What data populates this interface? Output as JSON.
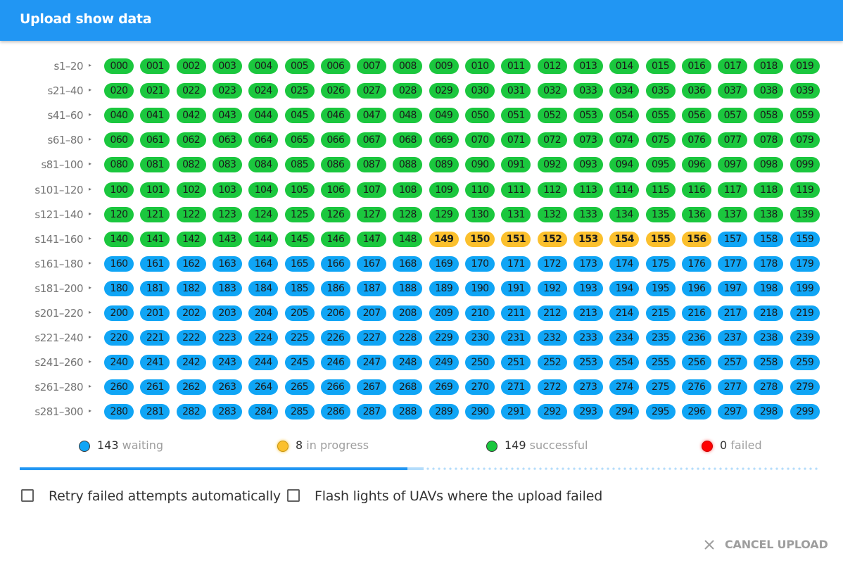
{
  "dialog": {
    "title": "Upload show data"
  },
  "rows": [
    {
      "label": "s1–20",
      "chips": [
        [
          "000",
          "s"
        ],
        [
          "001",
          "s"
        ],
        [
          "002",
          "s"
        ],
        [
          "003",
          "s"
        ],
        [
          "004",
          "s"
        ],
        [
          "005",
          "s"
        ],
        [
          "006",
          "s"
        ],
        [
          "007",
          "s"
        ],
        [
          "008",
          "s"
        ],
        [
          "009",
          "s"
        ],
        [
          "010",
          "s"
        ],
        [
          "011",
          "s"
        ],
        [
          "012",
          "s"
        ],
        [
          "013",
          "s"
        ],
        [
          "014",
          "s"
        ],
        [
          "015",
          "s"
        ],
        [
          "016",
          "s"
        ],
        [
          "017",
          "s"
        ],
        [
          "018",
          "s"
        ],
        [
          "019",
          "s"
        ]
      ]
    },
    {
      "label": "s21–40",
      "chips": [
        [
          "020",
          "s"
        ],
        [
          "021",
          "s"
        ],
        [
          "022",
          "s"
        ],
        [
          "023",
          "s"
        ],
        [
          "024",
          "s"
        ],
        [
          "025",
          "s"
        ],
        [
          "026",
          "s"
        ],
        [
          "027",
          "s"
        ],
        [
          "028",
          "s"
        ],
        [
          "029",
          "s"
        ],
        [
          "030",
          "s"
        ],
        [
          "031",
          "s"
        ],
        [
          "032",
          "s"
        ],
        [
          "033",
          "s"
        ],
        [
          "034",
          "s"
        ],
        [
          "035",
          "s"
        ],
        [
          "036",
          "s"
        ],
        [
          "037",
          "s"
        ],
        [
          "038",
          "s"
        ],
        [
          "039",
          "s"
        ]
      ]
    },
    {
      "label": "s41–60",
      "chips": [
        [
          "040",
          "s"
        ],
        [
          "041",
          "s"
        ],
        [
          "042",
          "s"
        ],
        [
          "043",
          "s"
        ],
        [
          "044",
          "s"
        ],
        [
          "045",
          "s"
        ],
        [
          "046",
          "s"
        ],
        [
          "047",
          "s"
        ],
        [
          "048",
          "s"
        ],
        [
          "049",
          "s"
        ],
        [
          "050",
          "s"
        ],
        [
          "051",
          "s"
        ],
        [
          "052",
          "s"
        ],
        [
          "053",
          "s"
        ],
        [
          "054",
          "s"
        ],
        [
          "055",
          "s"
        ],
        [
          "056",
          "s"
        ],
        [
          "057",
          "s"
        ],
        [
          "058",
          "s"
        ],
        [
          "059",
          "s"
        ]
      ]
    },
    {
      "label": "s61–80",
      "chips": [
        [
          "060",
          "s"
        ],
        [
          "061",
          "s"
        ],
        [
          "062",
          "s"
        ],
        [
          "063",
          "s"
        ],
        [
          "064",
          "s"
        ],
        [
          "065",
          "s"
        ],
        [
          "066",
          "s"
        ],
        [
          "067",
          "s"
        ],
        [
          "068",
          "s"
        ],
        [
          "069",
          "s"
        ],
        [
          "070",
          "s"
        ],
        [
          "071",
          "s"
        ],
        [
          "072",
          "s"
        ],
        [
          "073",
          "s"
        ],
        [
          "074",
          "s"
        ],
        [
          "075",
          "s"
        ],
        [
          "076",
          "s"
        ],
        [
          "077",
          "s"
        ],
        [
          "078",
          "s"
        ],
        [
          "079",
          "s"
        ]
      ]
    },
    {
      "label": "s81–100",
      "chips": [
        [
          "080",
          "s"
        ],
        [
          "081",
          "s"
        ],
        [
          "082",
          "s"
        ],
        [
          "083",
          "s"
        ],
        [
          "084",
          "s"
        ],
        [
          "085",
          "s"
        ],
        [
          "086",
          "s"
        ],
        [
          "087",
          "s"
        ],
        [
          "088",
          "s"
        ],
        [
          "089",
          "s"
        ],
        [
          "090",
          "s"
        ],
        [
          "091",
          "s"
        ],
        [
          "092",
          "s"
        ],
        [
          "093",
          "s"
        ],
        [
          "094",
          "s"
        ],
        [
          "095",
          "s"
        ],
        [
          "096",
          "s"
        ],
        [
          "097",
          "s"
        ],
        [
          "098",
          "s"
        ],
        [
          "099",
          "s"
        ]
      ]
    },
    {
      "label": "s101–120",
      "chips": [
        [
          "100",
          "s"
        ],
        [
          "101",
          "s"
        ],
        [
          "102",
          "s"
        ],
        [
          "103",
          "s"
        ],
        [
          "104",
          "s"
        ],
        [
          "105",
          "s"
        ],
        [
          "106",
          "s"
        ],
        [
          "107",
          "s"
        ],
        [
          "108",
          "s"
        ],
        [
          "109",
          "s"
        ],
        [
          "110",
          "s"
        ],
        [
          "111",
          "s"
        ],
        [
          "112",
          "s"
        ],
        [
          "113",
          "s"
        ],
        [
          "114",
          "s"
        ],
        [
          "115",
          "s"
        ],
        [
          "116",
          "s"
        ],
        [
          "117",
          "s"
        ],
        [
          "118",
          "s"
        ],
        [
          "119",
          "s"
        ]
      ]
    },
    {
      "label": "s121–140",
      "chips": [
        [
          "120",
          "s"
        ],
        [
          "121",
          "s"
        ],
        [
          "122",
          "s"
        ],
        [
          "123",
          "s"
        ],
        [
          "124",
          "s"
        ],
        [
          "125",
          "s"
        ],
        [
          "126",
          "s"
        ],
        [
          "127",
          "s"
        ],
        [
          "128",
          "s"
        ],
        [
          "129",
          "s"
        ],
        [
          "130",
          "s"
        ],
        [
          "131",
          "s"
        ],
        [
          "132",
          "s"
        ],
        [
          "133",
          "s"
        ],
        [
          "134",
          "s"
        ],
        [
          "135",
          "s"
        ],
        [
          "136",
          "s"
        ],
        [
          "137",
          "s"
        ],
        [
          "138",
          "s"
        ],
        [
          "139",
          "s"
        ]
      ]
    },
    {
      "label": "s141–160",
      "chips": [
        [
          "140",
          "s"
        ],
        [
          "141",
          "s"
        ],
        [
          "142",
          "s"
        ],
        [
          "143",
          "s"
        ],
        [
          "144",
          "s"
        ],
        [
          "145",
          "s"
        ],
        [
          "146",
          "s"
        ],
        [
          "147",
          "s"
        ],
        [
          "148",
          "s"
        ],
        [
          "149",
          "p"
        ],
        [
          "150",
          "p"
        ],
        [
          "151",
          "p"
        ],
        [
          "152",
          "p"
        ],
        [
          "153",
          "p"
        ],
        [
          "154",
          "p"
        ],
        [
          "155",
          "p"
        ],
        [
          "156",
          "p"
        ],
        [
          "157",
          "w"
        ],
        [
          "158",
          "w"
        ],
        [
          "159",
          "w"
        ]
      ]
    },
    {
      "label": "s161–180",
      "chips": [
        [
          "160",
          "w"
        ],
        [
          "161",
          "w"
        ],
        [
          "162",
          "w"
        ],
        [
          "163",
          "w"
        ],
        [
          "164",
          "w"
        ],
        [
          "165",
          "w"
        ],
        [
          "166",
          "w"
        ],
        [
          "167",
          "w"
        ],
        [
          "168",
          "w"
        ],
        [
          "169",
          "w"
        ],
        [
          "170",
          "w"
        ],
        [
          "171",
          "w"
        ],
        [
          "172",
          "w"
        ],
        [
          "173",
          "w"
        ],
        [
          "174",
          "w"
        ],
        [
          "175",
          "w"
        ],
        [
          "176",
          "w"
        ],
        [
          "177",
          "w"
        ],
        [
          "178",
          "w"
        ],
        [
          "179",
          "w"
        ]
      ]
    },
    {
      "label": "s181–200",
      "chips": [
        [
          "180",
          "w"
        ],
        [
          "181",
          "w"
        ],
        [
          "182",
          "w"
        ],
        [
          "183",
          "w"
        ],
        [
          "184",
          "w"
        ],
        [
          "185",
          "w"
        ],
        [
          "186",
          "w"
        ],
        [
          "187",
          "w"
        ],
        [
          "188",
          "w"
        ],
        [
          "189",
          "w"
        ],
        [
          "190",
          "w"
        ],
        [
          "191",
          "w"
        ],
        [
          "192",
          "w"
        ],
        [
          "193",
          "w"
        ],
        [
          "194",
          "w"
        ],
        [
          "195",
          "w"
        ],
        [
          "196",
          "w"
        ],
        [
          "197",
          "w"
        ],
        [
          "198",
          "w"
        ],
        [
          "199",
          "w"
        ]
      ]
    },
    {
      "label": "s201–220",
      "chips": [
        [
          "200",
          "w"
        ],
        [
          "201",
          "w"
        ],
        [
          "202",
          "w"
        ],
        [
          "203",
          "w"
        ],
        [
          "204",
          "w"
        ],
        [
          "205",
          "w"
        ],
        [
          "206",
          "w"
        ],
        [
          "207",
          "w"
        ],
        [
          "208",
          "w"
        ],
        [
          "209",
          "w"
        ],
        [
          "210",
          "w"
        ],
        [
          "211",
          "w"
        ],
        [
          "212",
          "w"
        ],
        [
          "213",
          "w"
        ],
        [
          "214",
          "w"
        ],
        [
          "215",
          "w"
        ],
        [
          "216",
          "w"
        ],
        [
          "217",
          "w"
        ],
        [
          "218",
          "w"
        ],
        [
          "219",
          "w"
        ]
      ]
    },
    {
      "label": "s221–240",
      "chips": [
        [
          "220",
          "w"
        ],
        [
          "221",
          "w"
        ],
        [
          "222",
          "w"
        ],
        [
          "223",
          "w"
        ],
        [
          "224",
          "w"
        ],
        [
          "225",
          "w"
        ],
        [
          "226",
          "w"
        ],
        [
          "227",
          "w"
        ],
        [
          "228",
          "w"
        ],
        [
          "229",
          "w"
        ],
        [
          "230",
          "w"
        ],
        [
          "231",
          "w"
        ],
        [
          "232",
          "w"
        ],
        [
          "233",
          "w"
        ],
        [
          "234",
          "w"
        ],
        [
          "235",
          "w"
        ],
        [
          "236",
          "w"
        ],
        [
          "237",
          "w"
        ],
        [
          "238",
          "w"
        ],
        [
          "239",
          "w"
        ]
      ]
    },
    {
      "label": "s241–260",
      "chips": [
        [
          "240",
          "w"
        ],
        [
          "241",
          "w"
        ],
        [
          "242",
          "w"
        ],
        [
          "243",
          "w"
        ],
        [
          "244",
          "w"
        ],
        [
          "245",
          "w"
        ],
        [
          "246",
          "w"
        ],
        [
          "247",
          "w"
        ],
        [
          "248",
          "w"
        ],
        [
          "249",
          "w"
        ],
        [
          "250",
          "w"
        ],
        [
          "251",
          "w"
        ],
        [
          "252",
          "w"
        ],
        [
          "253",
          "w"
        ],
        [
          "254",
          "w"
        ],
        [
          "255",
          "w"
        ],
        [
          "256",
          "w"
        ],
        [
          "257",
          "w"
        ],
        [
          "258",
          "w"
        ],
        [
          "259",
          "w"
        ]
      ]
    },
    {
      "label": "s261–280",
      "chips": [
        [
          "260",
          "w"
        ],
        [
          "261",
          "w"
        ],
        [
          "262",
          "w"
        ],
        [
          "263",
          "w"
        ],
        [
          "264",
          "w"
        ],
        [
          "265",
          "w"
        ],
        [
          "266",
          "w"
        ],
        [
          "267",
          "w"
        ],
        [
          "268",
          "w"
        ],
        [
          "269",
          "w"
        ],
        [
          "270",
          "w"
        ],
        [
          "271",
          "w"
        ],
        [
          "272",
          "w"
        ],
        [
          "273",
          "w"
        ],
        [
          "274",
          "w"
        ],
        [
          "275",
          "w"
        ],
        [
          "276",
          "w"
        ],
        [
          "277",
          "w"
        ],
        [
          "278",
          "w"
        ],
        [
          "279",
          "w"
        ]
      ]
    },
    {
      "label": "s281–300",
      "chips": [
        [
          "280",
          "w"
        ],
        [
          "281",
          "w"
        ],
        [
          "282",
          "w"
        ],
        [
          "283",
          "w"
        ],
        [
          "284",
          "w"
        ],
        [
          "285",
          "w"
        ],
        [
          "286",
          "w"
        ],
        [
          "287",
          "w"
        ],
        [
          "288",
          "w"
        ],
        [
          "289",
          "w"
        ],
        [
          "290",
          "w"
        ],
        [
          "291",
          "w"
        ],
        [
          "292",
          "w"
        ],
        [
          "293",
          "w"
        ],
        [
          "294",
          "w"
        ],
        [
          "295",
          "w"
        ],
        [
          "296",
          "w"
        ],
        [
          "297",
          "w"
        ],
        [
          "298",
          "w"
        ],
        [
          "299",
          "w"
        ]
      ]
    }
  ],
  "row_arrow_icon": "triangle-right-icon",
  "legend": {
    "waiting": {
      "count": "143",
      "label": "waiting",
      "color": "#10a5f5"
    },
    "in_progress": {
      "count": "8",
      "label": "in progress",
      "color": "#fbc02d"
    },
    "successful": {
      "count": "149",
      "label": "successful",
      "color": "#1bc73e"
    },
    "failed": {
      "count": "0",
      "label": "failed",
      "color": "#ff0000"
    }
  },
  "progress": {
    "value": 0.485,
    "buffer": 0.505
  },
  "options": {
    "retry_label": "Retry failed attempts automatically",
    "retry_checked": false,
    "flash_label": "Flash lights of UAVs where the upload failed",
    "flash_checked": false
  },
  "actions": {
    "cancel_label": "CANCEL UPLOAD",
    "cancel_icon": "close-icon"
  },
  "colors": {
    "header": "#2196f3",
    "success": "#1bc73e",
    "waiting": "#10a5f5",
    "progress": "#fbc02d",
    "failed": "#ff0000"
  }
}
